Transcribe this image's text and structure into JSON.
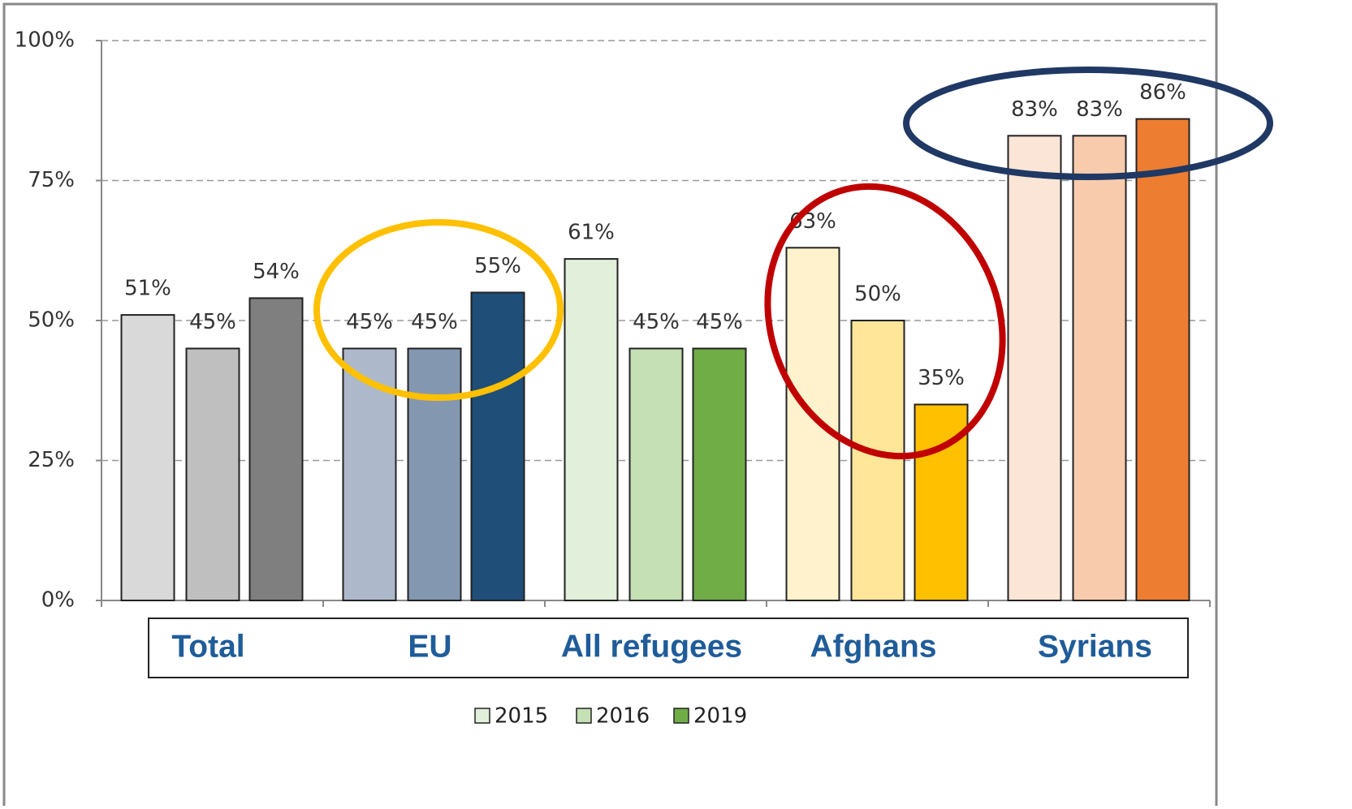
{
  "chart_data": {
    "type": "bar",
    "categories": [
      "Total",
      "EU",
      "All refugees",
      "Afghans",
      "Syrians"
    ],
    "series": [
      {
        "name": "2015",
        "color": "#e2efda",
        "colors": [
          "#d9d9d9",
          "#adb9ca",
          "#e2efda",
          "#fff2cc",
          "#fbe5d6"
        ],
        "values": [
          51,
          45,
          61,
          63,
          83
        ],
        "value_labels": [
          "51%",
          "45%",
          "61%",
          "63%",
          "83%"
        ]
      },
      {
        "name": "2016",
        "color": "#c5e0b4",
        "colors": [
          "#bfbfbf",
          "#8497b0",
          "#c5e0b4",
          "#ffe699",
          "#f8cbad"
        ],
        "values": [
          45,
          45,
          45,
          50,
          83
        ],
        "value_labels": [
          "45%",
          "45%",
          "45%",
          "50%",
          "83%"
        ]
      },
      {
        "name": "2019",
        "color": "#70ad47",
        "colors": [
          "#7f7f7f",
          "#1f4e79",
          "#70ad47",
          "#ffc000",
          "#ed7d31"
        ],
        "values": [
          54,
          55,
          45,
          35,
          86
        ],
        "value_labels": [
          "54%",
          "55%",
          "45%",
          "35%",
          "86%"
        ]
      }
    ],
    "ylim": [
      0,
      100
    ],
    "yticks": [
      {
        "value": 0,
        "label": "0%"
      },
      {
        "value": 25,
        "label": "25%"
      },
      {
        "value": 50,
        "label": "50%"
      },
      {
        "value": 75,
        "label": "75%"
      },
      {
        "value": 100,
        "label": "100%"
      }
    ],
    "grid": true,
    "legend": "bottom"
  }
}
